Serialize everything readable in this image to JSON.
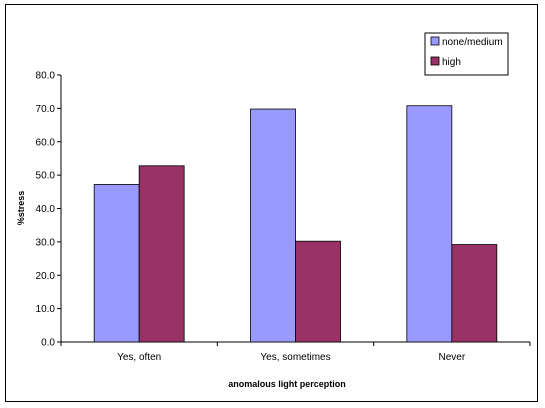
{
  "chart_data": {
    "type": "bar",
    "title": "",
    "xlabel": "anomalous light perception",
    "ylabel": "%stress",
    "categories": [
      "Yes, often",
      "Yes, sometimes",
      "Never"
    ],
    "series": [
      {
        "name": "none/medium",
        "color": "#9999ff",
        "values": [
          47.2,
          69.8,
          70.8
        ]
      },
      {
        "name": "high",
        "color": "#993366",
        "values": [
          52.8,
          30.2,
          29.2
        ]
      }
    ],
    "ylim": [
      0,
      80
    ],
    "yticks": [
      "0.0",
      "10.0",
      "20.0",
      "30.0",
      "40.0",
      "50.0",
      "60.0",
      "70.0",
      "80.0"
    ],
    "grid": false,
    "legend": "top-right"
  }
}
